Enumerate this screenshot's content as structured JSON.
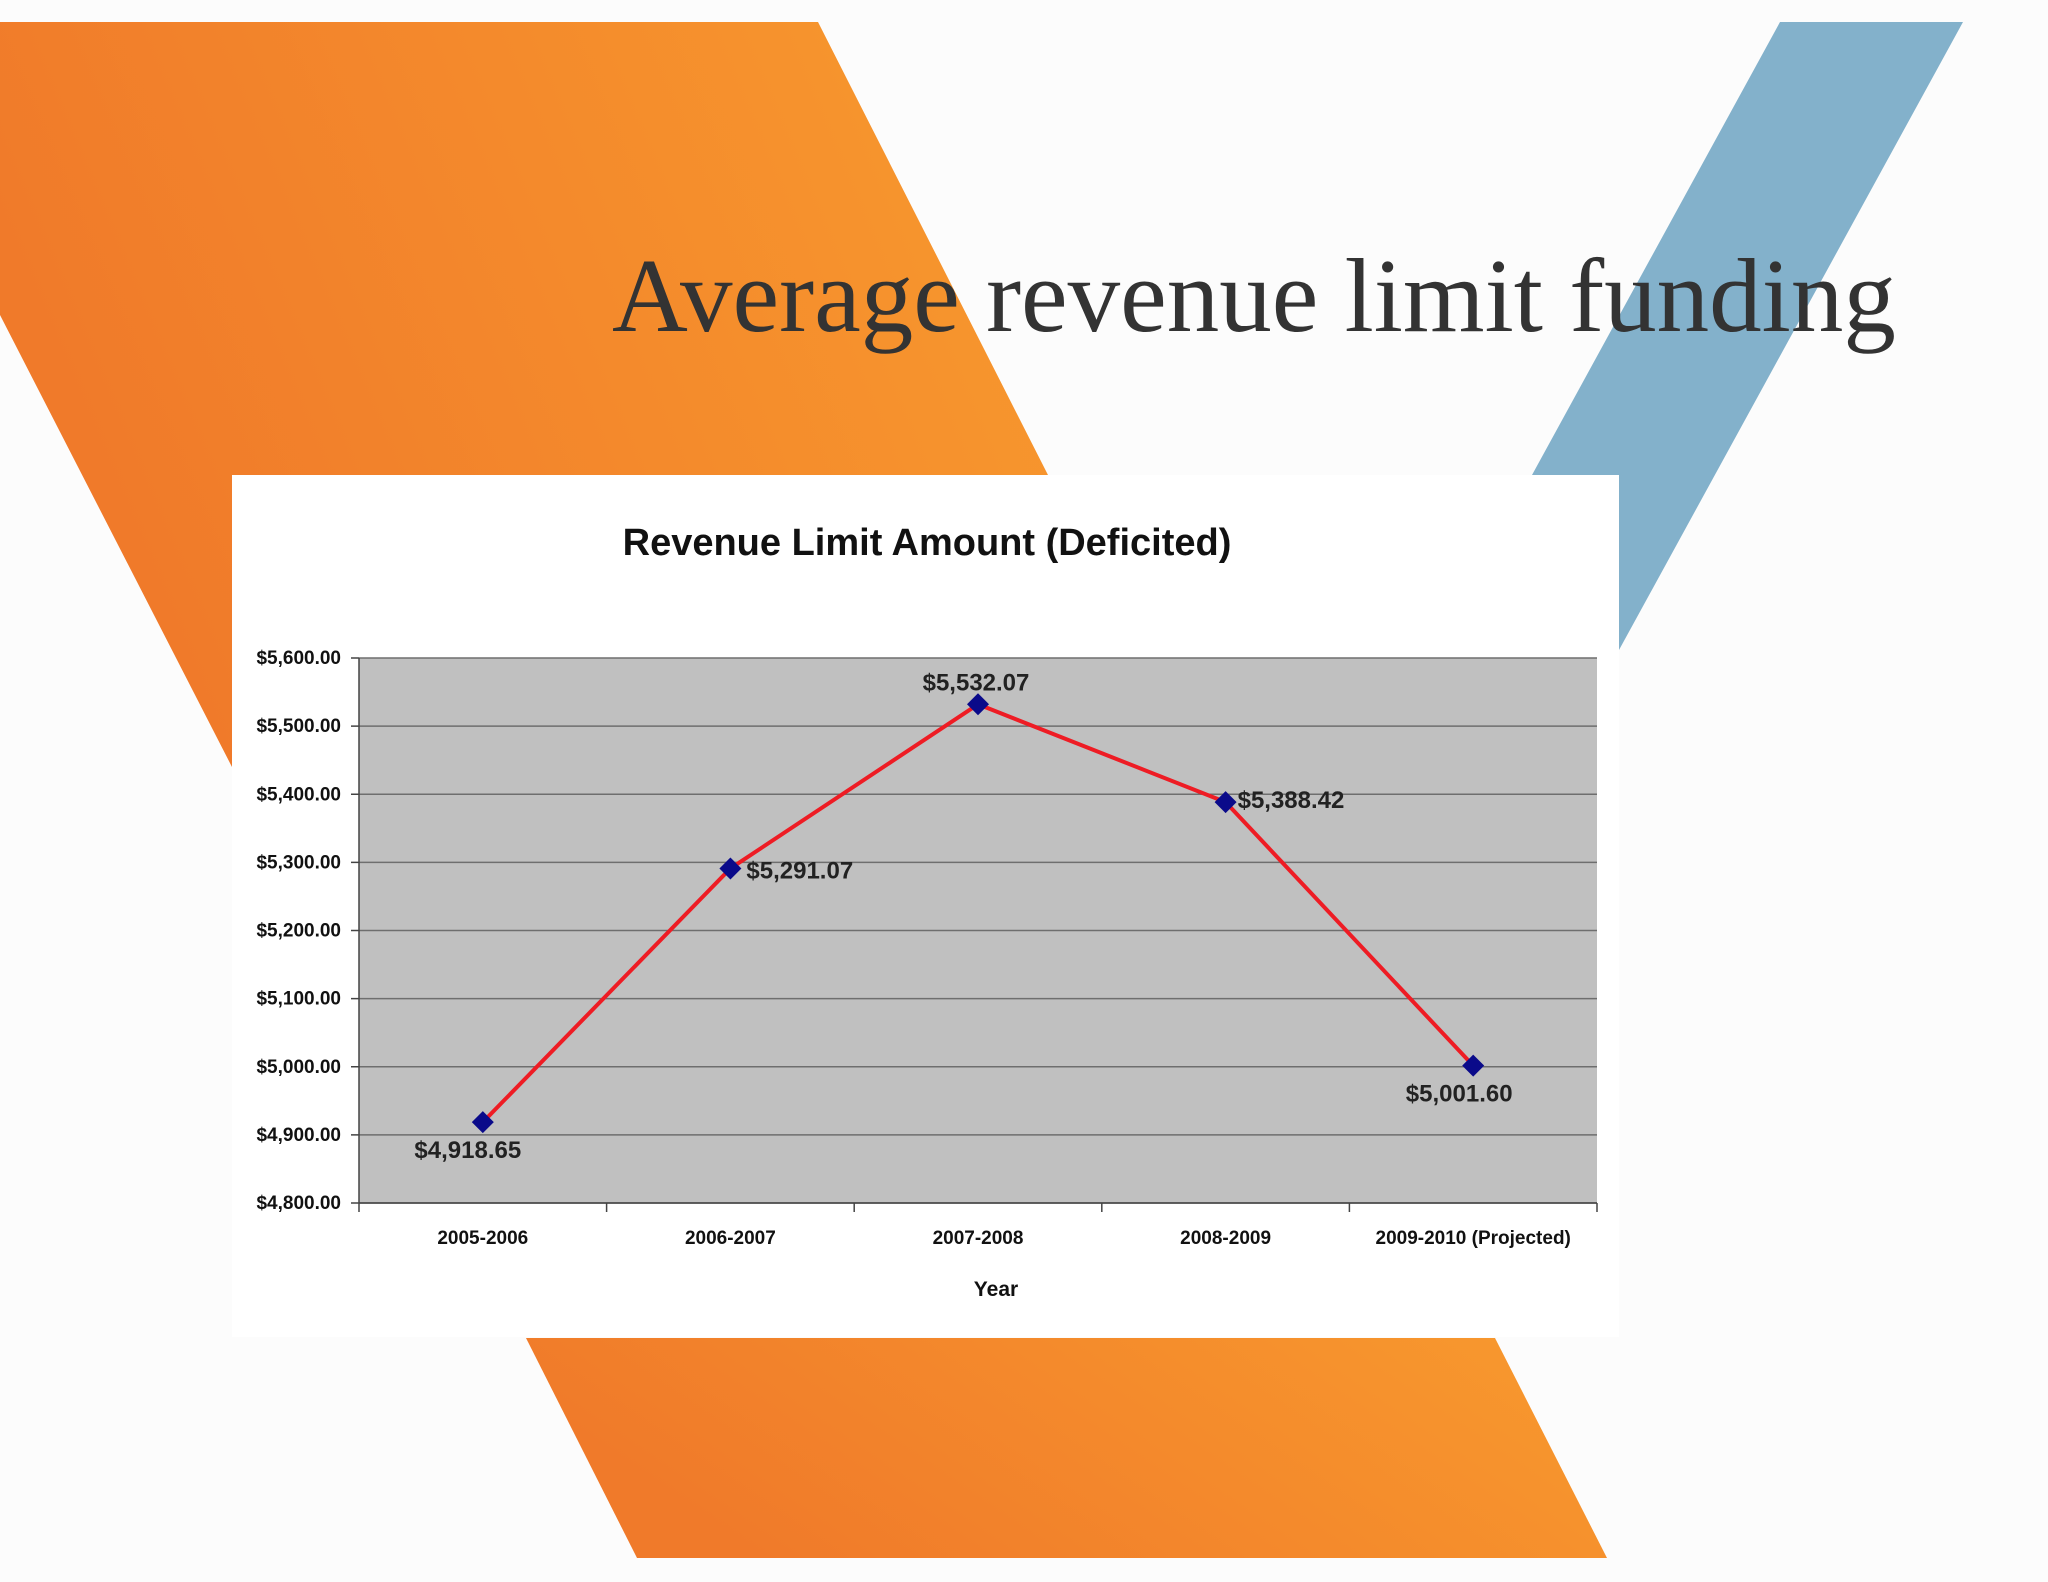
{
  "slide": {
    "title": "Average revenue limit funding"
  },
  "colors": {
    "orange_dark": "#f07a2a",
    "orange_light": "#f89a2e",
    "blue_accent": "#83b1cb",
    "plot_background": "#c0c0c0",
    "line": "#ee1c24",
    "marker": "#0a0a8a",
    "gridline": "#6e6e6e"
  },
  "chart_data": {
    "type": "line",
    "title": "Revenue Limit Amount (Deficited)",
    "xlabel": "Year",
    "ylabel": "",
    "categories": [
      "2005-2006",
      "2006-2007",
      "2007-2008",
      "2008-2009",
      "2009-2010 (Projected)"
    ],
    "series": [
      {
        "values": [
          4918.65,
          5291.07,
          5532.07,
          5388.42,
          5001.6
        ],
        "labels": [
          "$4,918.65",
          "$5,291.07",
          "$5,532.07",
          "$5,388.42",
          "$5,001.60"
        ]
      }
    ],
    "ylim": [
      4800,
      5600
    ],
    "ytick_values": [
      5600,
      5500,
      5400,
      5300,
      5200,
      5100,
      5000,
      4900,
      4800
    ],
    "ytick_labels": [
      "$5,600.00",
      "$5,500.00",
      "$5,400.00",
      "$5,300.00",
      "$5,200.00",
      "$5,100.00",
      "$5,000.00",
      "$4,900.00",
      "$4,800.00"
    ],
    "grid": true,
    "marker": "diamond",
    "legend": "none"
  }
}
